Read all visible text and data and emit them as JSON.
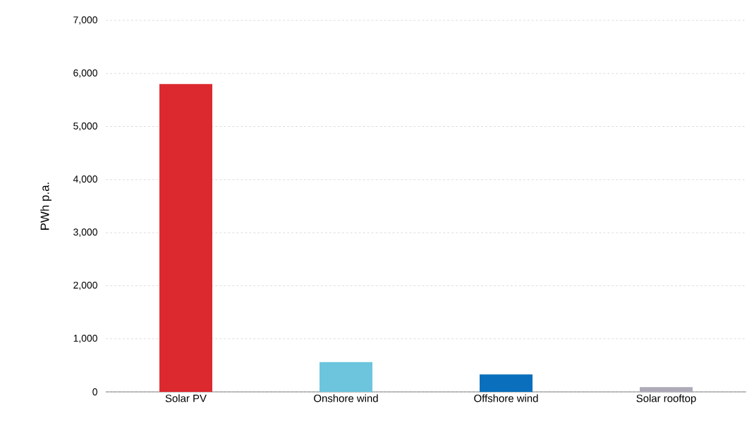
{
  "chart_data": {
    "type": "bar",
    "ylabel": "PWh p.a.",
    "categories": [
      "Solar PV",
      "Onshore wind",
      "Offshore wind",
      "Solar rooftop"
    ],
    "values": [
      5800,
      560,
      330,
      90
    ],
    "colors": [
      "#dc292f",
      "#6cc5dd",
      "#0a6fbd",
      "#aeaab8"
    ],
    "ylim": [
      0,
      7000
    ],
    "yticks": [
      {
        "value": 0,
        "label": "0"
      },
      {
        "value": 1000,
        "label": "1,000"
      },
      {
        "value": 2000,
        "label": "2,000"
      },
      {
        "value": 3000,
        "label": "3,000"
      },
      {
        "value": 4000,
        "label": "4,000"
      },
      {
        "value": 5000,
        "label": "5,000"
      },
      {
        "value": 6000,
        "label": "6,000"
      },
      {
        "value": 7000,
        "label": "7,000"
      }
    ],
    "grid": "y"
  }
}
